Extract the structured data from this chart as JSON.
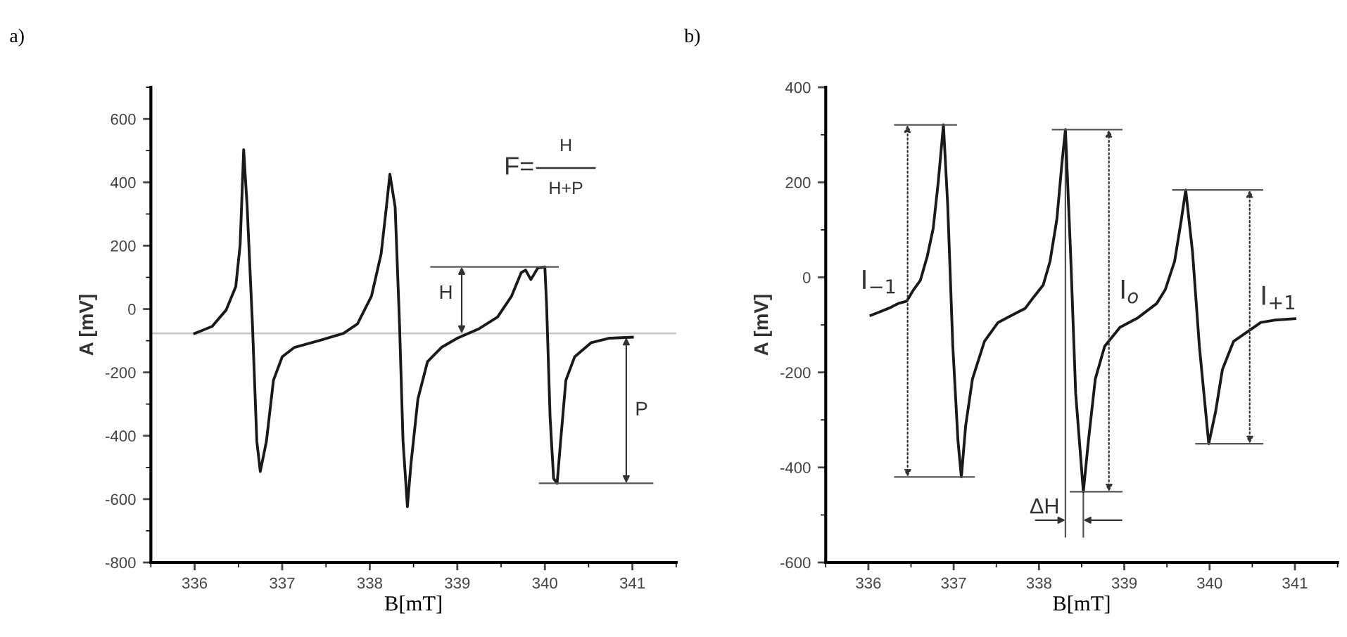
{
  "chart_data": [
    {
      "type": "line",
      "title": "a)",
      "xlabel": "B[mT]",
      "ylabel": "A [mV]",
      "xlim": [
        335.5,
        341.5
      ],
      "ylim": [
        -800,
        700
      ],
      "xticks": [
        336,
        337,
        338,
        339,
        340,
        341
      ],
      "yticks": [
        -800,
        -600,
        -400,
        -200,
        0,
        200,
        400,
        600
      ],
      "grid": false,
      "x": [
        336.0,
        336.2,
        336.36,
        336.47,
        336.52,
        336.56,
        336.6,
        336.66,
        336.71,
        336.75,
        336.82,
        336.9,
        337.0,
        337.14,
        337.43,
        337.7,
        337.86,
        338.02,
        338.13,
        338.19,
        338.23,
        338.29,
        338.34,
        338.38,
        338.43,
        338.47,
        338.55,
        338.66,
        338.82,
        339.0,
        339.25,
        339.46,
        339.62,
        339.73,
        339.78,
        339.84,
        339.92,
        340.0,
        340.02,
        340.06,
        340.1,
        340.14,
        340.18,
        340.24,
        340.34,
        340.53,
        340.74,
        341.0
      ],
      "series": [
        {
          "color": "#1a1a1a",
          "values": [
            -77,
            -55,
            -3,
            71,
            204,
            503,
            322,
            -47,
            -417,
            -513,
            -417,
            -225,
            -151,
            -121,
            -99,
            -77,
            -47,
            41,
            174,
            322,
            426,
            322,
            -47,
            -417,
            -624,
            -491,
            -284,
            -166,
            -121,
            -92,
            -62,
            -25,
            41,
            115,
            123,
            93,
            130,
            133,
            12,
            -343,
            -535,
            -550,
            -417,
            -225,
            -151,
            -106,
            -92,
            -89
          ]
        }
      ],
      "ref_lines": [
        {
          "axis": "y",
          "value": -77,
          "color": "#c8c8c8"
        }
      ],
      "annotations": [
        {
          "text": "H",
          "x": 339.05,
          "y": -77
        },
        "P",
        "F=",
        "H",
        "H+P"
      ]
    },
    {
      "type": "line",
      "title": "b)",
      "xlabel": "B[mT]",
      "ylabel": "A [mV]",
      "xlim": [
        335.5,
        341.5
      ],
      "ylim": [
        -600,
        400
      ],
      "xticks": [
        336,
        337,
        338,
        339,
        340,
        341
      ],
      "yticks": [
        -600,
        -400,
        -200,
        0,
        200,
        400
      ],
      "grid": false,
      "x": [
        336.03,
        336.13,
        336.24,
        336.35,
        336.45,
        336.53,
        336.61,
        336.69,
        336.76,
        336.82,
        336.88,
        336.93,
        336.99,
        337.05,
        337.09,
        337.14,
        337.22,
        337.36,
        337.52,
        337.68,
        337.84,
        337.94,
        338.05,
        338.13,
        338.21,
        338.27,
        338.31,
        338.37,
        338.43,
        338.52,
        338.58,
        338.66,
        338.77,
        338.95,
        339.16,
        339.38,
        339.48,
        339.59,
        339.67,
        339.72,
        339.8,
        339.88,
        339.99,
        340.07,
        340.15,
        340.28,
        340.44,
        340.6,
        340.76,
        341.0
      ],
      "series": [
        {
          "color": "#1a1a1a",
          "values": [
            -80,
            -73,
            -65,
            -55,
            -50,
            -26,
            -6,
            44,
            103,
            202,
            321,
            152,
            -145,
            -343,
            -420,
            -313,
            -214,
            -135,
            -95,
            -80,
            -65,
            -41,
            -16,
            34,
            123,
            242,
            311,
            53,
            -244,
            -451,
            -343,
            -214,
            -145,
            -105,
            -85,
            -55,
            -26,
            34,
            123,
            184,
            53,
            -145,
            -350,
            -283,
            -194,
            -135,
            -115,
            -95,
            -90,
            -87
          ]
        }
      ],
      "ref_lines": [
        {
          "axis": "x",
          "value": 338.31,
          "label": "ΔH",
          "color": "#555555"
        },
        {
          "axis": "x",
          "value": 338.52,
          "color": "#555555"
        }
      ],
      "annotations": [
        "I$_{−1}$",
        "I$_{o}$",
        "I$_{+1}$"
      ]
    }
  ]
}
